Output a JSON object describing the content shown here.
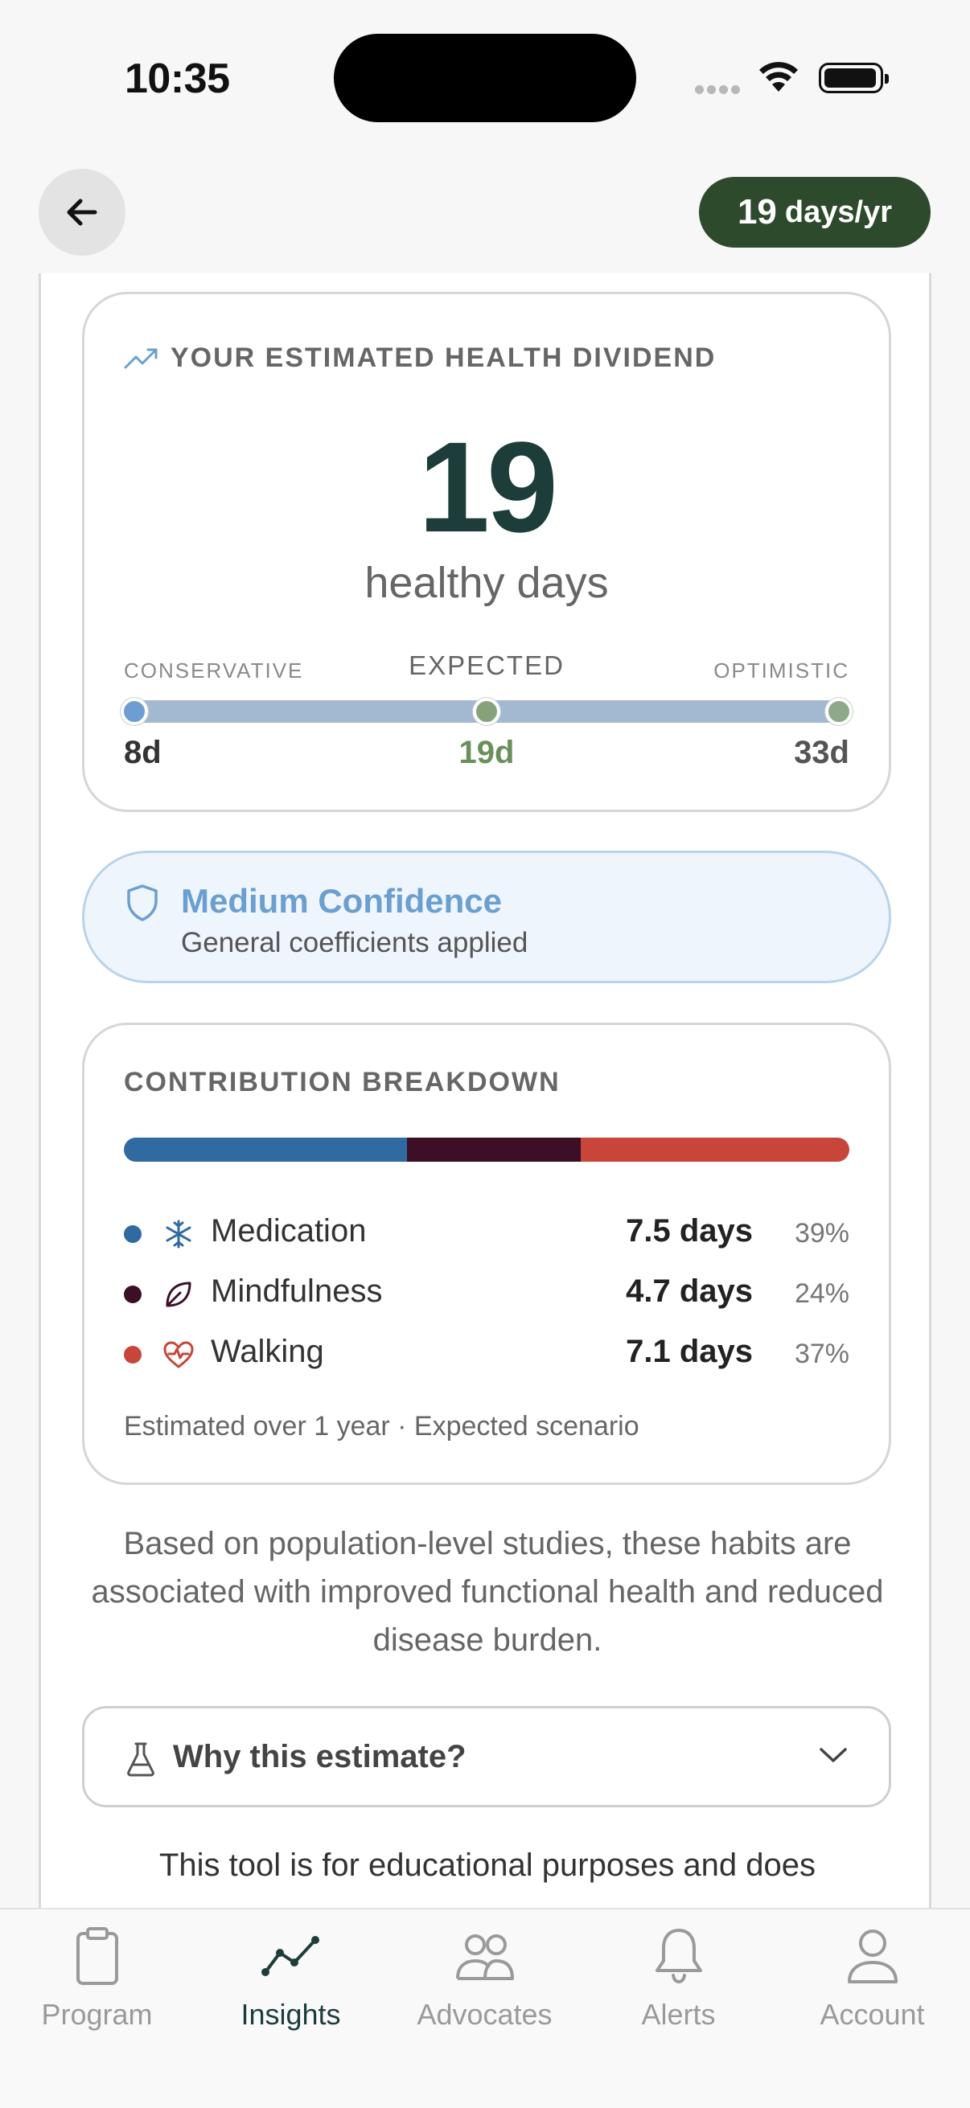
{
  "status_bar": {
    "time": "10:35"
  },
  "header": {
    "pill_value": "19",
    "pill_unit": "days/yr"
  },
  "dividend": {
    "title": "YOUR ESTIMATED HEALTH DIVIDEND",
    "value": "19",
    "unit_label": "healthy days",
    "range": {
      "conservative_label": "CONSERVATIVE",
      "expected_label": "EXPECTED",
      "optimistic_label": "OPTIMISTIC",
      "conservative_value": "8d",
      "expected_value": "19d",
      "optimistic_value": "33d"
    }
  },
  "confidence": {
    "title": "Medium Confidence",
    "subtitle": "General coefficients applied",
    "color": "#6a9fd0"
  },
  "breakdown": {
    "title": "CONTRIBUTION BREAKDOWN",
    "items": [
      {
        "name": "Medication",
        "days": "7.5 days",
        "pct": "39%",
        "percent": 39,
        "color": "#2f6aa1",
        "icon": "medical-icon"
      },
      {
        "name": "Mindfulness",
        "days": "4.7 days",
        "pct": "24%",
        "percent": 24,
        "color": "#3c0f26",
        "icon": "leaf-icon"
      },
      {
        "name": "Walking",
        "days": "7.1 days",
        "pct": "37%",
        "percent": 37,
        "color": "#c8453a",
        "icon": "heart-pulse-icon"
      }
    ],
    "note": "Estimated over 1 year · Expected scenario"
  },
  "explanation": "Based on population-level studies, these habits are associated with improved functional health and reduced disease burden.",
  "why": {
    "label": "Why this estimate?"
  },
  "disclaimer": "This tool is for educational purposes and does",
  "tabs": [
    {
      "label": "Program",
      "icon": "clipboard-icon",
      "active": false
    },
    {
      "label": "Insights",
      "icon": "chart-line-icon",
      "active": true
    },
    {
      "label": "Advocates",
      "icon": "people-icon",
      "active": false
    },
    {
      "label": "Alerts",
      "icon": "bell-icon",
      "active": false
    },
    {
      "label": "Account",
      "icon": "person-icon",
      "active": false
    }
  ]
}
